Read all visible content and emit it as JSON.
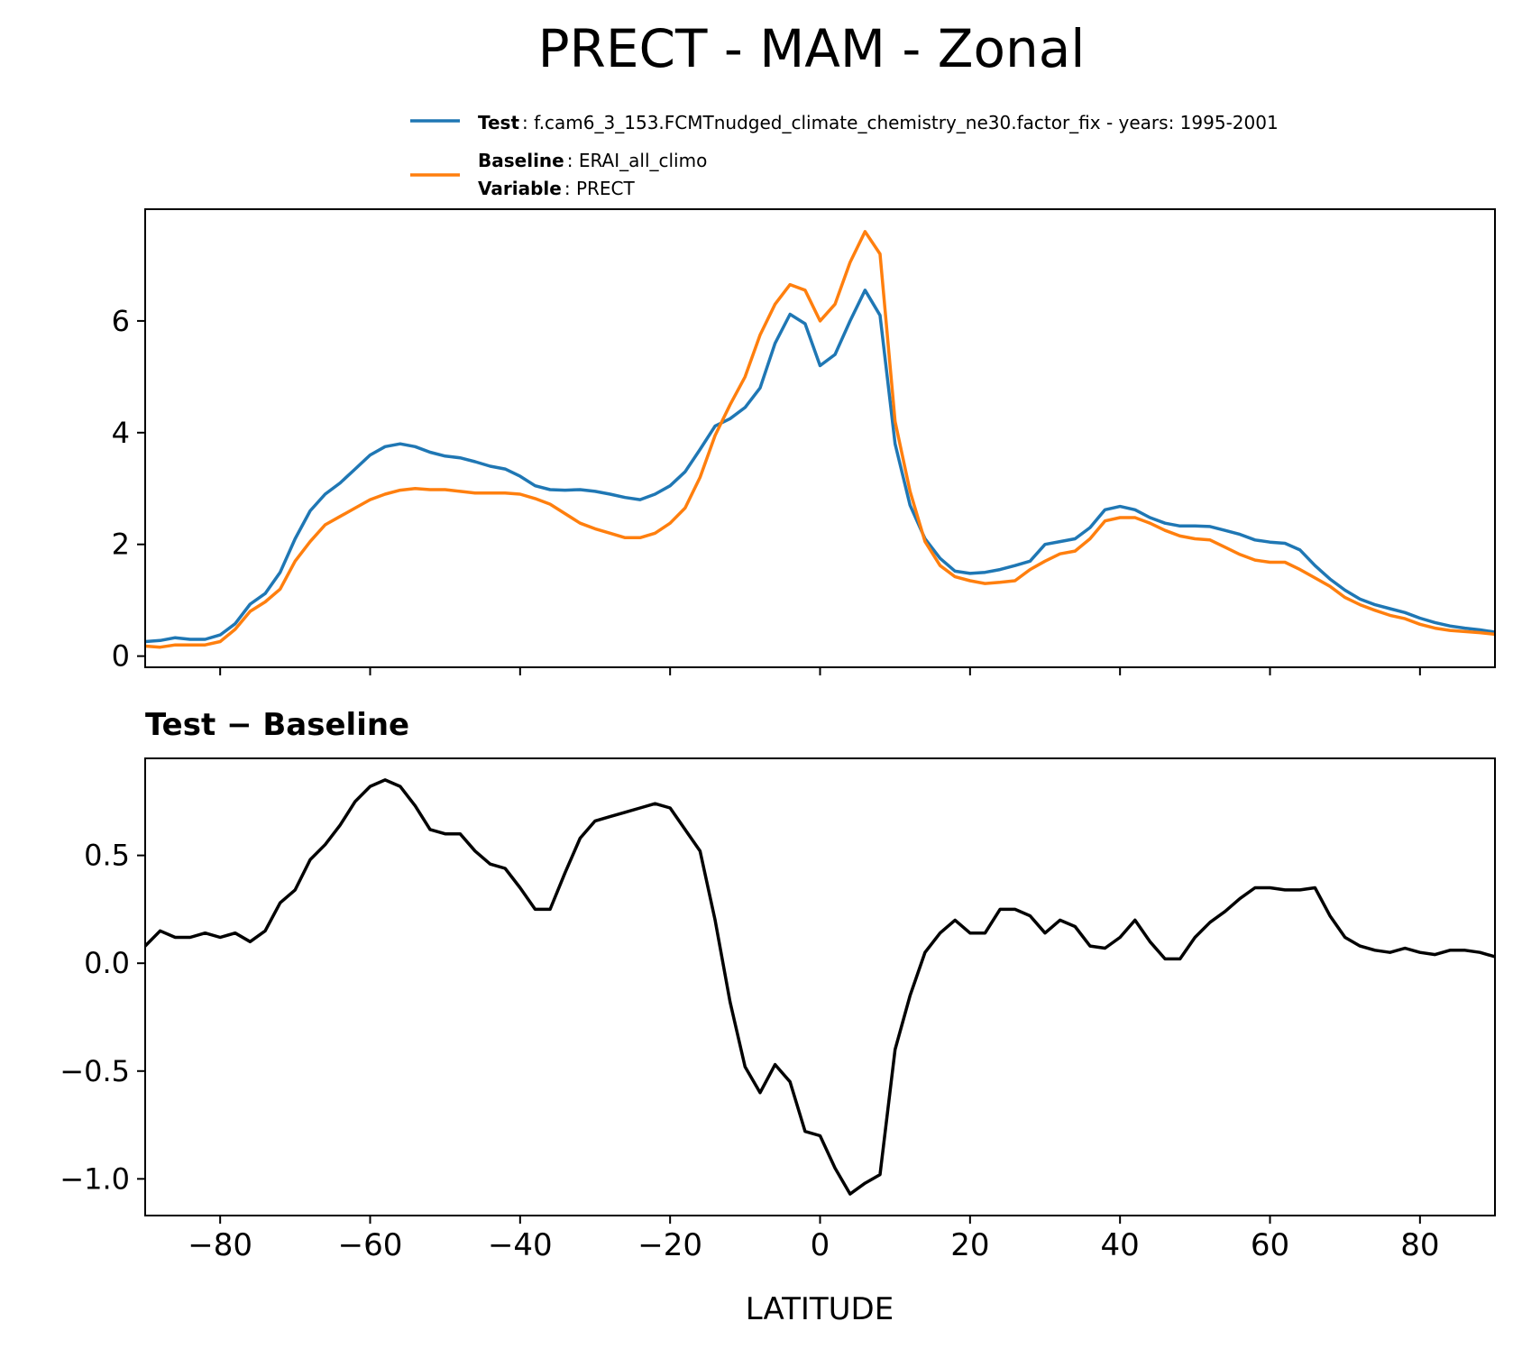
{
  "chart_data": [
    {
      "type": "line",
      "figure_title": "PRECT - MAM - Zonal",
      "xlim": [
        -90,
        90
      ],
      "ylim": [
        -0.2,
        8.0
      ],
      "yticks": [
        0,
        2,
        4,
        6
      ],
      "xticks": [
        -80,
        -60,
        -40,
        -20,
        0,
        20,
        40,
        60,
        80
      ],
      "legend": {
        "position": "above-right",
        "test_key": "Test",
        "test_value": ": f.cam6_3_153.FCMTnudged_climate_chemistry_ne30.factor_fix - years: 1995-2001",
        "baseline_key": "Baseline",
        "baseline_value": ": ERAI_all_climo",
        "variable_key": "Variable",
        "variable_value": ": PRECT"
      },
      "series": [
        {
          "name": "Test",
          "color": "#1f77b4",
          "x": [
            -90,
            -88,
            -86,
            -84,
            -82,
            -80,
            -78,
            -76,
            -74,
            -72,
            -70,
            -68,
            -66,
            -64,
            -62,
            -60,
            -58,
            -56,
            -54,
            -52,
            -50,
            -48,
            -46,
            -44,
            -42,
            -40,
            -38,
            -36,
            -34,
            -32,
            -30,
            -28,
            -26,
            -24,
            -22,
            -20,
            -18,
            -16,
            -14,
            -12,
            -10,
            -8,
            -6,
            -4,
            -2,
            0,
            2,
            4,
            6,
            8,
            10,
            12,
            14,
            16,
            18,
            20,
            22,
            24,
            26,
            28,
            30,
            32,
            34,
            36,
            38,
            40,
            42,
            44,
            46,
            48,
            50,
            52,
            54,
            56,
            58,
            60,
            62,
            64,
            66,
            68,
            70,
            72,
            74,
            76,
            78,
            80,
            82,
            84,
            86,
            88,
            90
          ],
          "values": [
            0.26,
            0.28,
            0.33,
            0.3,
            0.3,
            0.38,
            0.58,
            0.93,
            1.12,
            1.5,
            2.1,
            2.6,
            2.9,
            3.1,
            3.35,
            3.6,
            3.75,
            3.8,
            3.75,
            3.65,
            3.58,
            3.55,
            3.48,
            3.4,
            3.35,
            3.22,
            3.05,
            2.98,
            2.97,
            2.98,
            2.95,
            2.9,
            2.84,
            2.8,
            2.9,
            3.05,
            3.3,
            3.7,
            4.12,
            4.25,
            4.45,
            4.8,
            5.6,
            6.12,
            5.95,
            5.2,
            5.4,
            6.0,
            6.55,
            6.1,
            3.8,
            2.7,
            2.1,
            1.75,
            1.52,
            1.48,
            1.5,
            1.55,
            1.62,
            1.7,
            2.0,
            2.05,
            2.1,
            2.3,
            2.62,
            2.68,
            2.62,
            2.48,
            2.38,
            2.33,
            2.33,
            2.32,
            2.25,
            2.18,
            2.08,
            2.04,
            2.02,
            1.9,
            1.62,
            1.38,
            1.18,
            1.02,
            0.92,
            0.85,
            0.78,
            0.68,
            0.6,
            0.54,
            0.5,
            0.47,
            0.43
          ]
        },
        {
          "name": "Baseline",
          "color": "#ff7f0e",
          "x": [
            -90,
            -88,
            -86,
            -84,
            -82,
            -80,
            -78,
            -76,
            -74,
            -72,
            -70,
            -68,
            -66,
            -64,
            -62,
            -60,
            -58,
            -56,
            -54,
            -52,
            -50,
            -48,
            -46,
            -44,
            -42,
            -40,
            -38,
            -36,
            -34,
            -32,
            -30,
            -28,
            -26,
            -24,
            -22,
            -20,
            -18,
            -16,
            -14,
            -12,
            -10,
            -8,
            -6,
            -4,
            -2,
            0,
            2,
            4,
            6,
            8,
            10,
            12,
            14,
            16,
            18,
            20,
            22,
            24,
            26,
            28,
            30,
            32,
            34,
            36,
            38,
            40,
            42,
            44,
            46,
            48,
            50,
            52,
            54,
            56,
            58,
            60,
            62,
            64,
            66,
            68,
            70,
            72,
            74,
            76,
            78,
            80,
            82,
            84,
            86,
            88,
            90
          ],
          "values": [
            0.18,
            0.16,
            0.2,
            0.2,
            0.2,
            0.26,
            0.48,
            0.8,
            0.97,
            1.2,
            1.7,
            2.05,
            2.35,
            2.5,
            2.65,
            2.8,
            2.9,
            2.97,
            3.0,
            2.98,
            2.98,
            2.95,
            2.92,
            2.92,
            2.92,
            2.9,
            2.82,
            2.72,
            2.55,
            2.38,
            2.28,
            2.2,
            2.12,
            2.12,
            2.2,
            2.38,
            2.65,
            3.2,
            3.95,
            4.5,
            5.0,
            5.75,
            6.3,
            6.65,
            6.55,
            6.0,
            6.3,
            7.05,
            7.6,
            7.2,
            4.2,
            2.95,
            2.05,
            1.62,
            1.42,
            1.35,
            1.3,
            1.32,
            1.35,
            1.55,
            1.7,
            1.83,
            1.88,
            2.1,
            2.42,
            2.48,
            2.48,
            2.38,
            2.25,
            2.15,
            2.1,
            2.08,
            1.95,
            1.82,
            1.72,
            1.68,
            1.68,
            1.55,
            1.4,
            1.25,
            1.05,
            0.92,
            0.82,
            0.73,
            0.67,
            0.57,
            0.5,
            0.46,
            0.44,
            0.42,
            0.39
          ]
        }
      ]
    },
    {
      "type": "line",
      "title": "Test − Baseline",
      "xlabel": "LATITUDE",
      "xlim": [
        -90,
        90
      ],
      "ylim": [
        -1.17,
        0.95
      ],
      "yticks": [
        0.5,
        0.0,
        -0.5,
        -1.0
      ],
      "ytick_labels": [
        "0.5",
        "0.0",
        "−0.5",
        "−1.0"
      ],
      "xticks": [
        -80,
        -60,
        -40,
        -20,
        0,
        20,
        40,
        60,
        80
      ],
      "xtick_labels": [
        "−80",
        "−60",
        "−40",
        "−20",
        "0",
        "20",
        "40",
        "60",
        "80"
      ],
      "series": [
        {
          "name": "Test - Baseline",
          "color": "#000000",
          "x": [
            -90,
            -88,
            -86,
            -84,
            -82,
            -80,
            -78,
            -76,
            -74,
            -72,
            -70,
            -68,
            -66,
            -64,
            -62,
            -60,
            -58,
            -56,
            -54,
            -52,
            -50,
            -48,
            -46,
            -44,
            -42,
            -40,
            -38,
            -36,
            -34,
            -32,
            -30,
            -28,
            -26,
            -24,
            -22,
            -20,
            -18,
            -16,
            -14,
            -12,
            -10,
            -8,
            -6,
            -4,
            -2,
            0,
            2,
            4,
            6,
            8,
            10,
            12,
            14,
            16,
            18,
            20,
            22,
            24,
            26,
            28,
            30,
            32,
            34,
            36,
            38,
            40,
            42,
            44,
            46,
            48,
            50,
            52,
            54,
            56,
            58,
            60,
            62,
            64,
            66,
            68,
            70,
            72,
            74,
            76,
            78,
            80,
            82,
            84,
            86,
            88,
            90
          ],
          "values": [
            0.08,
            0.15,
            0.12,
            0.12,
            0.14,
            0.12,
            0.14,
            0.1,
            0.15,
            0.28,
            0.34,
            0.48,
            0.55,
            0.64,
            0.75,
            0.82,
            0.85,
            0.82,
            0.73,
            0.62,
            0.6,
            0.6,
            0.52,
            0.46,
            0.44,
            0.35,
            0.25,
            0.25,
            0.42,
            0.58,
            0.66,
            0.68,
            0.7,
            0.72,
            0.74,
            0.72,
            0.62,
            0.52,
            0.2,
            -0.18,
            -0.48,
            -0.6,
            -0.47,
            -0.55,
            -0.78,
            -0.8,
            -0.95,
            -1.07,
            -1.02,
            -0.98,
            -0.4,
            -0.15,
            0.05,
            0.14,
            0.2,
            0.14,
            0.14,
            0.25,
            0.25,
            0.22,
            0.14,
            0.2,
            0.17,
            0.08,
            0.07,
            0.12,
            0.2,
            0.1,
            0.02,
            0.02,
            0.12,
            0.19,
            0.24,
            0.3,
            0.35,
            0.35,
            0.34,
            0.34,
            0.35,
            0.22,
            0.12,
            0.08,
            0.06,
            0.05,
            0.07,
            0.05,
            0.04,
            0.06,
            0.06,
            0.05,
            0.03
          ]
        }
      ]
    }
  ]
}
